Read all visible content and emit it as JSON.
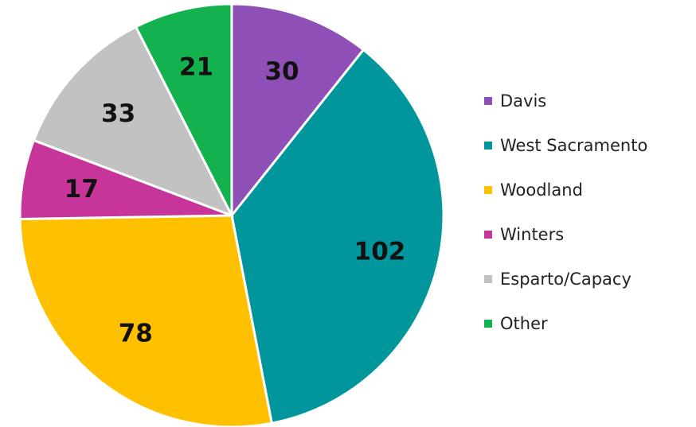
{
  "chart_data": {
    "type": "pie",
    "categories": [
      "Davis",
      "West Sacramento",
      "Woodland",
      "Winters",
      "Esparto/Capacy",
      "Other"
    ],
    "values": [
      30,
      102,
      78,
      17,
      33,
      21
    ],
    "colors": [
      "#8E4FB6",
      "#00969B",
      "#FFC000",
      "#C8359A",
      "#C2C2C2",
      "#13B24F"
    ],
    "title": "",
    "start_angle": "12 o'clock",
    "direction": "clockwise",
    "legend": {
      "placement": "right"
    }
  }
}
